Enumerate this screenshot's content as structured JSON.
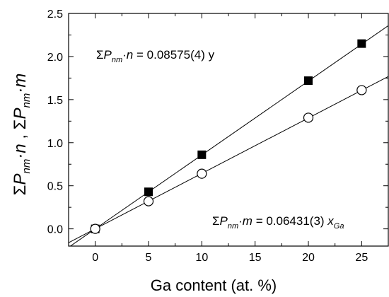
{
  "chart_data": {
    "type": "scatter",
    "xlabel": "Ga content (at. %)",
    "ylabel": {
      "sigma": "Σ",
      "p": "P",
      "nm": "nm",
      "dot_n": "·n",
      "sep": " , ",
      "dot_m": "·m"
    },
    "xlim": [
      -2.5,
      27.5
    ],
    "ylim": [
      -0.2,
      2.5
    ],
    "xticks": [
      "0",
      "5",
      "10",
      "15",
      "20",
      "25"
    ],
    "xtick_values": [
      0,
      5,
      10,
      15,
      20,
      25
    ],
    "yticks": [
      "0.0",
      "0.5",
      "1.0",
      "1.5",
      "2.0",
      "2.5"
    ],
    "ytick_values": [
      0.0,
      0.5,
      1.0,
      1.5,
      2.0,
      2.5
    ],
    "grid": false,
    "series": [
      {
        "marker": "filled-square",
        "color": "#000000",
        "x": [
          0,
          5,
          10,
          20,
          25
        ],
        "y": [
          0.0,
          0.43,
          0.86,
          1.72,
          2.15
        ],
        "fit_slope": 0.08575
      },
      {
        "marker": "open-circle",
        "color": "#000000",
        "x": [
          0,
          5,
          10,
          20,
          25
        ],
        "y": [
          0.0,
          0.32,
          0.64,
          1.29,
          1.61
        ],
        "fit_slope": 0.06431
      }
    ],
    "annotations": [
      {
        "sigma": "Σ",
        "p": "P",
        "nm": "nm",
        "var": "·n",
        "eq": " = 0.08575(4) y",
        "sub": ""
      },
      {
        "sigma": "Σ",
        "p": "P",
        "nm": "nm",
        "var": "·m",
        "eq": " = 0.06431(3) ",
        "x": "x",
        "sub": "Ga"
      }
    ]
  }
}
